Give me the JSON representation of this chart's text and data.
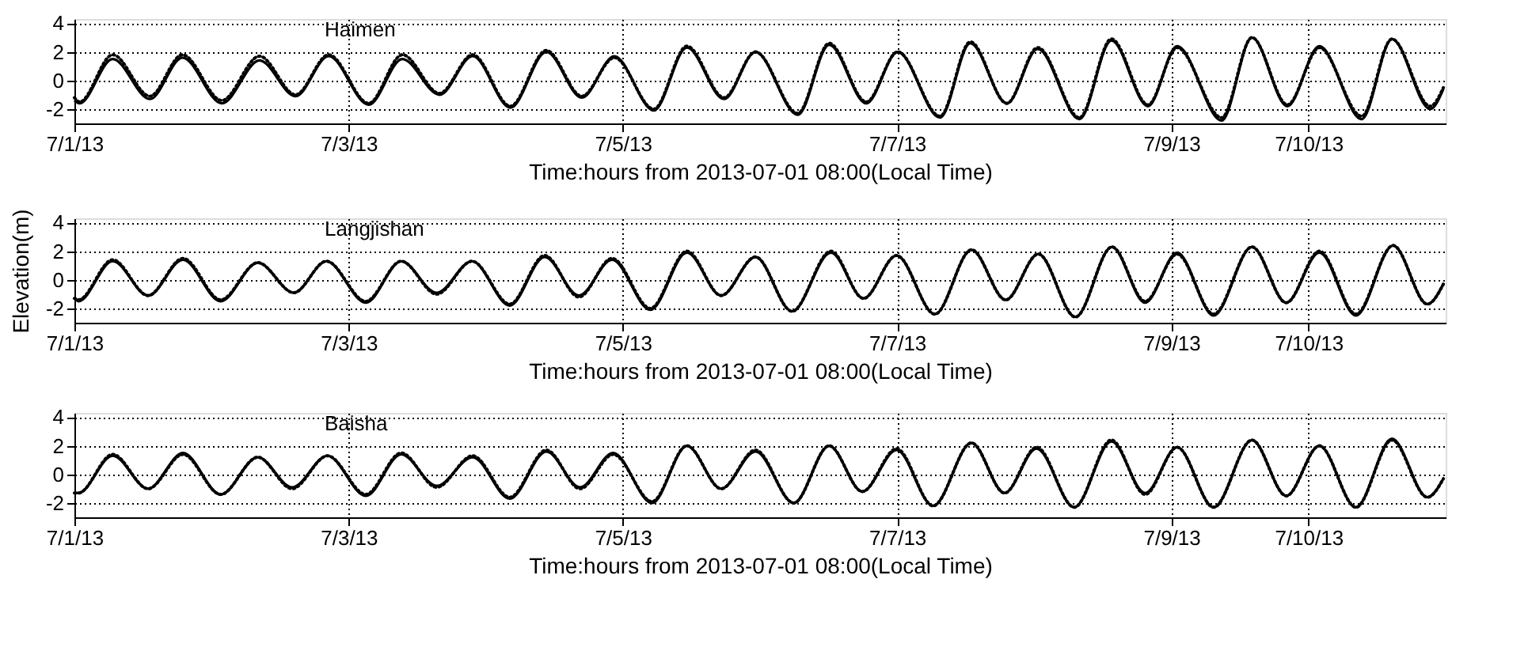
{
  "chart_data": [
    {
      "type": "line",
      "title": "Haimen",
      "xlabel": "Time:hours from 2013-07-01 08:00(Local Time)",
      "xlim": [
        "2013-07-01T00:00",
        "2013-07-11T00:00"
      ],
      "xticks": [
        {
          "value": "2013-07-01",
          "label": "7/1/13"
        },
        {
          "value": "2013-07-03",
          "label": "7/3/13"
        },
        {
          "value": "2013-07-05",
          "label": "7/5/13"
        },
        {
          "value": "2013-07-07",
          "label": "7/7/13"
        },
        {
          "value": "2013-07-09",
          "label": "7/9/13"
        },
        {
          "value": "2013-07-10",
          "label": "7/10/13"
        }
      ],
      "ylim": [
        -3,
        4.3
      ],
      "yticks": [
        -2,
        0,
        2,
        4
      ],
      "grid": true,
      "x": [
        "2013-07-01T00:00",
        "2013-07-01T00:54",
        "2013-07-01T06:42",
        "2013-07-01T13:12",
        "2013-07-01T18:54",
        "2013-07-02T01:48",
        "2013-07-02T08:24",
        "2013-07-02T14:42",
        "2013-07-02T20:30",
        "2013-07-03T03:30",
        "2013-07-03T09:24",
        "2013-07-03T15:54",
        "2013-07-03T21:42",
        "2013-07-04T04:18",
        "2013-07-04T10:36",
        "2013-07-04T16:48",
        "2013-07-04T22:30",
        "2013-07-05T05:24",
        "2013-07-05T11:12",
        "2013-07-05T17:42",
        "2013-07-05T23:12",
        "2013-07-06T06:36",
        "2013-07-06T12:06",
        "2013-07-06T18:36",
        "2013-07-07T00:06",
        "2013-07-07T07:30",
        "2013-07-07T12:48",
        "2013-07-07T19:12",
        "2013-07-08T00:36",
        "2013-07-08T07:54",
        "2013-07-08T13:30",
        "2013-07-08T19:54",
        "2013-07-09T01:00",
        "2013-07-09T08:48",
        "2013-07-09T14:06",
        "2013-07-09T20:18",
        "2013-07-10T01:54",
        "2013-07-10T09:18",
        "2013-07-10T14:36",
        "2013-07-10T21:18",
        "2013-07-10T23:36"
      ],
      "series": [
        {
          "color": "#000000",
          "line_style": "solid",
          "values": [
            -1.4,
            -1.6,
            1.5,
            -1.3,
            1.6,
            -1.6,
            1.4,
            -1.1,
            1.7,
            -1.7,
            1.5,
            -1.0,
            1.7,
            -1.9,
            2.0,
            -1.2,
            1.7,
            -2.1,
            2.3,
            -1.3,
            2.0,
            -2.4,
            2.5,
            -1.6,
            2.0,
            -2.6,
            2.6,
            -1.6,
            2.2,
            -2.7,
            2.8,
            -1.8,
            2.4,
            -2.8,
            3.0,
            -1.8,
            2.4,
            -2.7,
            2.9,
            -2.0,
            -0.6
          ]
        },
        {
          "color": "#000000",
          "line_style": "dotted",
          "values": [
            -1.2,
            -1.5,
            1.8,
            -1.1,
            1.8,
            -1.4,
            1.7,
            -1.0,
            1.8,
            -1.6,
            1.8,
            -0.9,
            1.8,
            -1.8,
            2.1,
            -1.1,
            1.6,
            -2.0,
            2.4,
            -1.2,
            2.0,
            -2.3,
            2.6,
            -1.5,
            2.0,
            -2.5,
            2.7,
            -1.6,
            2.3,
            -2.6,
            2.9,
            -1.7,
            2.3,
            -2.6,
            3.0,
            -1.7,
            2.3,
            -2.5,
            2.9,
            -1.8,
            -0.5
          ]
        }
      ]
    },
    {
      "type": "line",
      "title": "Langjishan",
      "xlabel": "Time:hours from 2013-07-01 08:00(Local Time)",
      "ylabel": "Elevation(m)",
      "xlim": [
        "2013-07-01T00:00",
        "2013-07-11T00:00"
      ],
      "xticks": [
        {
          "value": "2013-07-01",
          "label": "7/1/13"
        },
        {
          "value": "2013-07-03",
          "label": "7/3/13"
        },
        {
          "value": "2013-07-05",
          "label": "7/5/13"
        },
        {
          "value": "2013-07-07",
          "label": "7/7/13"
        },
        {
          "value": "2013-07-09",
          "label": "7/9/13"
        },
        {
          "value": "2013-07-10",
          "label": "7/10/13"
        }
      ],
      "ylim": [
        -3,
        4.3
      ],
      "yticks": [
        -2,
        0,
        2,
        4
      ],
      "grid": true,
      "x": [
        "2013-07-01T00:00",
        "2013-07-01T00:42",
        "2013-07-01T06:42",
        "2013-07-01T12:54",
        "2013-07-01T19:00",
        "2013-07-02T01:36",
        "2013-07-02T08:06",
        "2013-07-02T14:24",
        "2013-07-02T20:06",
        "2013-07-03T03:00",
        "2013-07-03T09:12",
        "2013-07-03T15:24",
        "2013-07-03T21:36",
        "2013-07-04T04:12",
        "2013-07-04T10:18",
        "2013-07-04T16:18",
        "2013-07-04T22:06",
        "2013-07-05T04:48",
        "2013-07-05T11:12",
        "2013-07-05T17:12",
        "2013-07-05T23:12",
        "2013-07-06T05:36",
        "2013-07-06T12:24",
        "2013-07-06T18:06",
        "2013-07-06T23:54",
        "2013-07-07T06:36",
        "2013-07-07T13:00",
        "2013-07-07T19:00",
        "2013-07-08T00:42",
        "2013-07-08T07:12",
        "2013-07-08T13:36",
        "2013-07-08T19:24",
        "2013-07-09T01:00",
        "2013-07-09T07:24",
        "2013-07-09T14:06",
        "2013-07-09T20:06",
        "2013-07-10T01:54",
        "2013-07-10T08:18",
        "2013-07-10T14:48",
        "2013-07-10T20:48",
        "2013-07-10T23:36"
      ],
      "series": [
        {
          "color": "#000000",
          "line_style": "solid",
          "values": [
            -1.3,
            -1.5,
            1.3,
            -1.1,
            1.4,
            -1.5,
            1.2,
            -0.9,
            1.3,
            -1.6,
            1.3,
            -0.9,
            1.3,
            -1.8,
            1.6,
            -1.1,
            1.4,
            -2.1,
            1.9,
            -1.1,
            1.6,
            -2.2,
            1.9,
            -1.3,
            1.7,
            -2.4,
            2.1,
            -1.4,
            1.8,
            -2.6,
            2.3,
            -1.6,
            1.9,
            -2.5,
            2.3,
            -1.6,
            1.9,
            -2.5,
            2.4,
            -1.7,
            -0.3
          ]
        },
        {
          "color": "#000000",
          "line_style": "dotted",
          "values": [
            -1.3,
            -1.4,
            1.4,
            -1.1,
            1.5,
            -1.4,
            1.2,
            -0.9,
            1.3,
            -1.5,
            1.3,
            -1.0,
            1.3,
            -1.7,
            1.7,
            -1.2,
            1.5,
            -2.0,
            2.0,
            -1.1,
            1.6,
            -2.2,
            2.0,
            -1.3,
            1.7,
            -2.4,
            2.1,
            -1.4,
            1.8,
            -2.6,
            2.3,
            -1.5,
            1.8,
            -2.4,
            2.3,
            -1.6,
            2.0,
            -2.4,
            2.4,
            -1.7,
            -0.3
          ]
        }
      ]
    },
    {
      "type": "line",
      "title": "Baisha",
      "xlabel": "Time:hours from 2013-07-01 08:00(Local Time)",
      "xlim": [
        "2013-07-01T00:00",
        "2013-07-11T00:00"
      ],
      "xticks": [
        {
          "value": "2013-07-01",
          "label": "7/1/13"
        },
        {
          "value": "2013-07-03",
          "label": "7/3/13"
        },
        {
          "value": "2013-07-05",
          "label": "7/5/13"
        },
        {
          "value": "2013-07-07",
          "label": "7/7/13"
        },
        {
          "value": "2013-07-09",
          "label": "7/9/13"
        },
        {
          "value": "2013-07-10",
          "label": "7/10/13"
        }
      ],
      "ylim": [
        -3,
        4.3
      ],
      "yticks": [
        -2,
        0,
        2,
        4
      ],
      "grid": true,
      "x": [
        "2013-07-01T00:00",
        "2013-07-01T00:42",
        "2013-07-01T06:42",
        "2013-07-01T12:54",
        "2013-07-01T19:00",
        "2013-07-02T01:36",
        "2013-07-02T08:06",
        "2013-07-02T14:06",
        "2013-07-02T20:18",
        "2013-07-03T03:00",
        "2013-07-03T09:12",
        "2013-07-03T15:24",
        "2013-07-03T21:42",
        "2013-07-04T04:12",
        "2013-07-04T10:36",
        "2013-07-04T16:30",
        "2013-07-04T22:18",
        "2013-07-05T05:06",
        "2013-07-05T11:12",
        "2013-07-05T17:12",
        "2013-07-05T23:12",
        "2013-07-06T05:54",
        "2013-07-06T12:06",
        "2013-07-06T17:54",
        "2013-07-06T23:54",
        "2013-07-07T06:18",
        "2013-07-07T13:00",
        "2013-07-07T18:48",
        "2013-07-08T00:24",
        "2013-07-08T07:00",
        "2013-07-08T13:30",
        "2013-07-08T19:24",
        "2013-07-09T01:00",
        "2013-07-09T07:24",
        "2013-07-09T14:06",
        "2013-07-09T20:06",
        "2013-07-10T01:54",
        "2013-07-10T08:18",
        "2013-07-10T14:36",
        "2013-07-10T20:48",
        "2013-07-10T23:36"
      ],
      "series": [
        {
          "color": "#000000",
          "line_style": "solid",
          "values": [
            -1.3,
            -1.3,
            1.3,
            -1.0,
            1.5,
            -1.4,
            1.2,
            -0.9,
            1.3,
            -1.5,
            1.4,
            -0.8,
            1.2,
            -1.7,
            1.6,
            -0.9,
            1.5,
            -2.0,
            2.0,
            -1.0,
            1.6,
            -2.0,
            2.0,
            -1.2,
            1.7,
            -2.2,
            2.2,
            -1.3,
            1.8,
            -2.3,
            2.3,
            -1.3,
            1.9,
            -2.3,
            2.4,
            -1.5,
            2.0,
            -2.3,
            2.5,
            -1.6,
            -0.3
          ]
        },
        {
          "color": "#000000",
          "line_style": "dotted",
          "values": [
            -1.3,
            -1.3,
            1.4,
            -1.0,
            1.4,
            -1.4,
            1.2,
            -1.0,
            1.3,
            -1.4,
            1.5,
            -0.9,
            1.3,
            -1.6,
            1.7,
            -1.0,
            1.4,
            -1.9,
            2.0,
            -1.0,
            1.7,
            -2.0,
            2.0,
            -1.2,
            1.8,
            -2.2,
            2.2,
            -1.3,
            1.9,
            -2.3,
            2.4,
            -1.4,
            1.9,
            -2.3,
            2.4,
            -1.5,
            2.0,
            -2.3,
            2.4,
            -1.6,
            -0.3
          ]
        }
      ]
    }
  ]
}
